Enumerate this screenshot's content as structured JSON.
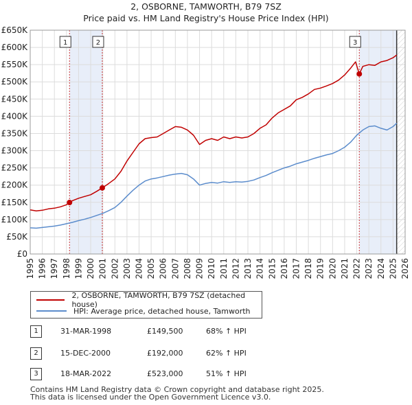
{
  "chart_data": {
    "type": "line",
    "title": "2, OSBORNE, TAMWORTH, B79 7SZ",
    "subtitle": "Price paid vs. HM Land Registry's House Price Index (HPI)",
    "xlim": [
      1995,
      2026
    ],
    "ylim": [
      0,
      650000
    ],
    "x_ticks": [
      "1995",
      "1996",
      "1997",
      "1998",
      "1999",
      "2000",
      "2001",
      "2002",
      "2003",
      "2004",
      "2005",
      "2006",
      "2007",
      "2008",
      "2009",
      "2010",
      "2011",
      "2012",
      "2013",
      "2014",
      "2015",
      "2016",
      "2017",
      "2018",
      "2019",
      "2020",
      "2021",
      "2022",
      "2023",
      "2024",
      "2025",
      "2026"
    ],
    "y_ticks": [
      "£0",
      "£50K",
      "£100K",
      "£150K",
      "£200K",
      "£250K",
      "£300K",
      "£350K",
      "£400K",
      "£450K",
      "£500K",
      "£550K",
      "£600K",
      "£650K"
    ],
    "series": [
      {
        "name": "2, OSBORNE, TAMWORTH, B79 7SZ (detached house)",
        "color": "#c00000",
        "x": [
          1995.0,
          1995.5,
          1996.0,
          1996.5,
          1997.0,
          1997.5,
          1998.0,
          1998.25,
          1998.5,
          1999.0,
          1999.5,
          2000.0,
          2000.5,
          2000.96,
          2001.5,
          2002.0,
          2002.5,
          2003.0,
          2003.5,
          2004.0,
          2004.5,
          2005.0,
          2005.5,
          2006.0,
          2006.5,
          2007.0,
          2007.5,
          2008.0,
          2008.5,
          2009.0,
          2009.5,
          2010.0,
          2010.5,
          2011.0,
          2011.5,
          2012.0,
          2012.5,
          2013.0,
          2013.5,
          2014.0,
          2014.5,
          2015.0,
          2015.5,
          2016.0,
          2016.5,
          2017.0,
          2017.5,
          2018.0,
          2018.5,
          2019.0,
          2019.5,
          2020.0,
          2020.5,
          2021.0,
          2021.5,
          2021.9,
          2022.21,
          2022.5,
          2023.0,
          2023.5,
          2024.0,
          2024.5,
          2025.0,
          2025.3
        ],
        "values": [
          128000,
          125000,
          127000,
          131000,
          133000,
          137000,
          143000,
          149500,
          155000,
          162000,
          167000,
          172000,
          182000,
          192000,
          205000,
          218000,
          240000,
          270000,
          295000,
          320000,
          335000,
          338000,
          340000,
          350000,
          360000,
          370000,
          368000,
          360000,
          345000,
          318000,
          330000,
          335000,
          330000,
          340000,
          335000,
          340000,
          337000,
          340000,
          350000,
          365000,
          375000,
          395000,
          410000,
          420000,
          430000,
          448000,
          455000,
          465000,
          478000,
          482000,
          488000,
          495000,
          505000,
          520000,
          540000,
          558000,
          523000,
          545000,
          550000,
          548000,
          558000,
          562000,
          570000,
          578000
        ]
      },
      {
        "name": "HPI: Average price, detached house, Tamworth",
        "color": "#5b8ccc",
        "x": [
          1995.0,
          1995.5,
          1996.0,
          1996.5,
          1997.0,
          1997.5,
          1998.0,
          1998.5,
          1999.0,
          1999.5,
          2000.0,
          2000.5,
          2001.0,
          2001.5,
          2002.0,
          2002.5,
          2003.0,
          2003.5,
          2004.0,
          2004.5,
          2005.0,
          2005.5,
          2006.0,
          2006.5,
          2007.0,
          2007.5,
          2008.0,
          2008.5,
          2009.0,
          2009.5,
          2010.0,
          2010.5,
          2011.0,
          2011.5,
          2012.0,
          2012.5,
          2013.0,
          2013.5,
          2014.0,
          2014.5,
          2015.0,
          2015.5,
          2016.0,
          2016.5,
          2017.0,
          2017.5,
          2018.0,
          2018.5,
          2019.0,
          2019.5,
          2020.0,
          2020.5,
          2021.0,
          2021.5,
          2022.0,
          2022.5,
          2023.0,
          2023.5,
          2024.0,
          2024.5,
          2025.0,
          2025.3
        ],
        "values": [
          76000,
          75000,
          77000,
          79000,
          81000,
          84000,
          88000,
          92000,
          97000,
          101000,
          106000,
          112000,
          118000,
          126000,
          135000,
          150000,
          168000,
          185000,
          200000,
          212000,
          218000,
          221000,
          225000,
          229000,
          232000,
          234000,
          230000,
          218000,
          200000,
          205000,
          208000,
          206000,
          210000,
          208000,
          210000,
          209000,
          211000,
          215000,
          222000,
          228000,
          236000,
          243000,
          250000,
          255000,
          262000,
          267000,
          272000,
          278000,
          283000,
          288000,
          292000,
          300000,
          310000,
          325000,
          345000,
          360000,
          370000,
          372000,
          365000,
          360000,
          370000,
          380000
        ]
      }
    ],
    "sales": [
      {
        "label": "1",
        "date": "31-MAR-1998",
        "price": "£149,500",
        "hpi": "68% ↑ HPI",
        "x": 1998.25,
        "value": 149500
      },
      {
        "label": "2",
        "date": "15-DEC-2000",
        "price": "£192,000",
        "hpi": "62% ↑ HPI",
        "x": 2000.96,
        "value": 192000
      },
      {
        "label": "3",
        "date": "18-MAR-2022",
        "price": "£523,000",
        "hpi": "51% ↑ HPI",
        "x": 2022.21,
        "value": 523000
      }
    ],
    "forecast_from": 2025.3
  },
  "footer": {
    "line1": "Contains HM Land Registry data © Crown copyright and database right 2025.",
    "line2": "This data is licensed under the Open Government Licence v3.0."
  }
}
